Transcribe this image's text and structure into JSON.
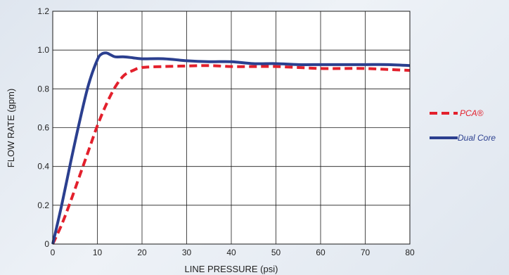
{
  "chart_data": {
    "type": "line",
    "xlabel": "LINE PRESSURE (psi)",
    "ylabel": "FLOW RATE (gpm)",
    "xlim": [
      0,
      80
    ],
    "ylim": [
      0,
      1.2
    ],
    "x_ticks": [
      0,
      10,
      20,
      30,
      40,
      50,
      60,
      70,
      80
    ],
    "x_tick_labels": [
      "0",
      "10",
      "20",
      "30",
      "40",
      "50",
      "60",
      "70",
      "80"
    ],
    "y_ticks": [
      0,
      0.2,
      0.4,
      0.6,
      0.8,
      1.0,
      1.2
    ],
    "y_tick_labels": [
      "0",
      "0.2",
      "0.4",
      "0.6",
      "0.8",
      "1.0",
      "1.2"
    ],
    "grid": true,
    "legend_position": "right",
    "series": [
      {
        "name": "PCA®",
        "color": "#e3202c",
        "style": "dashed",
        "points": [
          [
            0,
            0
          ],
          [
            2,
            0.1
          ],
          [
            4,
            0.22
          ],
          [
            6,
            0.35
          ],
          [
            8,
            0.48
          ],
          [
            10,
            0.61
          ],
          [
            12,
            0.72
          ],
          [
            14,
            0.81
          ],
          [
            16,
            0.87
          ],
          [
            18,
            0.895
          ],
          [
            20,
            0.91
          ],
          [
            25,
            0.915
          ],
          [
            30,
            0.918
          ],
          [
            35,
            0.92
          ],
          [
            40,
            0.915
          ],
          [
            45,
            0.915
          ],
          [
            50,
            0.915
          ],
          [
            55,
            0.91
          ],
          [
            60,
            0.905
          ],
          [
            65,
            0.905
          ],
          [
            70,
            0.905
          ],
          [
            75,
            0.9
          ],
          [
            80,
            0.895
          ]
        ]
      },
      {
        "name": "Dual Core",
        "color": "#2b3f8f",
        "style": "solid",
        "points": [
          [
            0,
            0
          ],
          [
            2,
            0.2
          ],
          [
            4,
            0.42
          ],
          [
            6,
            0.63
          ],
          [
            8,
            0.82
          ],
          [
            10,
            0.95
          ],
          [
            11,
            0.98
          ],
          [
            12,
            0.985
          ],
          [
            13,
            0.975
          ],
          [
            14,
            0.965
          ],
          [
            16,
            0.965
          ],
          [
            18,
            0.96
          ],
          [
            20,
            0.955
          ],
          [
            25,
            0.955
          ],
          [
            30,
            0.945
          ],
          [
            35,
            0.94
          ],
          [
            40,
            0.94
          ],
          [
            45,
            0.93
          ],
          [
            50,
            0.93
          ],
          [
            55,
            0.925
          ],
          [
            60,
            0.925
          ],
          [
            65,
            0.925
          ],
          [
            70,
            0.925
          ],
          [
            75,
            0.925
          ],
          [
            80,
            0.92
          ]
        ]
      }
    ]
  }
}
